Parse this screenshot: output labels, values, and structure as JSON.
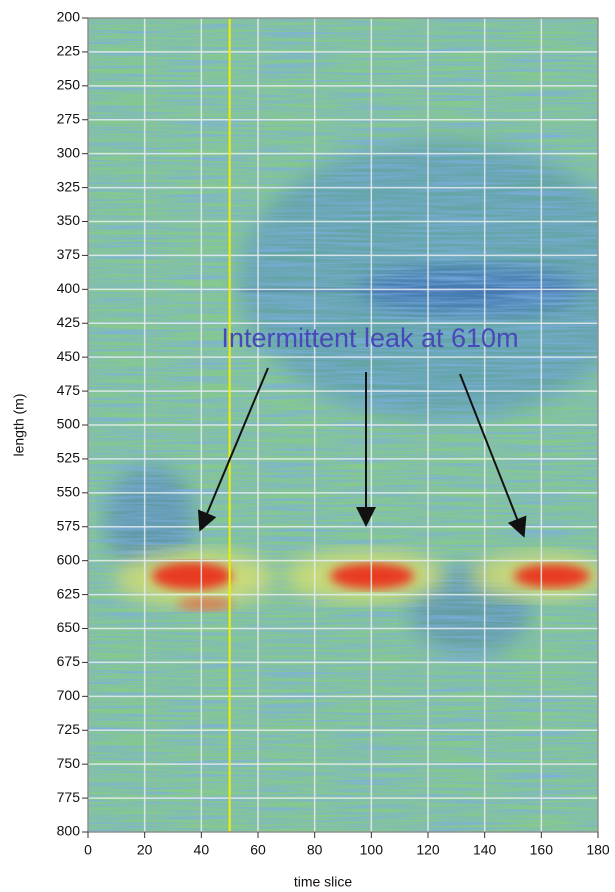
{
  "chart_data": {
    "type": "heatmap",
    "xlabel": "time slice",
    "ylabel": "length (m)",
    "annotation": "Intermittent leak at 610m",
    "annotation_color": "#4848b8",
    "xlim": [
      0,
      180
    ],
    "xticks": [
      0,
      20,
      40,
      60,
      80,
      100,
      120,
      140,
      160,
      180
    ],
    "ylim": [
      200,
      800
    ],
    "y_inverted": true,
    "yticks": [
      200,
      225,
      250,
      275,
      300,
      325,
      350,
      375,
      400,
      425,
      450,
      475,
      500,
      525,
      550,
      575,
      600,
      625,
      650,
      675,
      700,
      725,
      750,
      775,
      800
    ],
    "grid": true,
    "vline": 50,
    "vline_color": "#f0f000"
  }
}
